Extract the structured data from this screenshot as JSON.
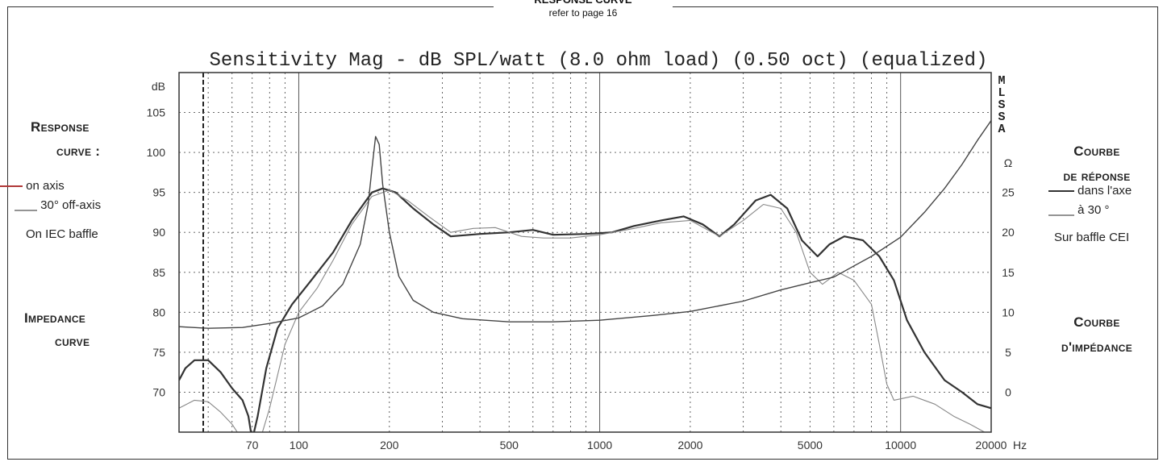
{
  "header": {
    "title": "RESPONSE CURVE",
    "subtitle": "refer to page 16"
  },
  "left_legend": {
    "response_title_1": "Response",
    "response_title_2": "curve :",
    "on_axis": "on axis",
    "off_axis": "30° off-axis",
    "baffle": "On IEC baffle",
    "impedance_title_1": "Impedance",
    "impedance_title_2": "curve"
  },
  "right_legend": {
    "response_title_1": "Courbe",
    "response_title_2": "de réponse",
    "on_axis": "dans l'axe",
    "off_axis": "à 30 °",
    "baffle": "Sur baffle CEI",
    "impedance_title_1": "Courbe",
    "impedance_title_2": "d'impédance"
  },
  "chart_data": {
    "type": "line",
    "title": "Sensitivity Mag - dB SPL/watt (8.0 ohm load) (0.50 oct) (equalized)",
    "brand_vertical": "MLSSA",
    "x_scale": "log",
    "xlim": [
      40,
      20000
    ],
    "xlabel": "Hz",
    "x_ticks": [
      {
        "value": 70,
        "label": "70"
      },
      {
        "value": 100,
        "label": "100"
      },
      {
        "value": 200,
        "label": "200"
      },
      {
        "value": 500,
        "label": "500"
      },
      {
        "value": 1000,
        "label": "1000"
      },
      {
        "value": 2000,
        "label": "2000"
      },
      {
        "value": 5000,
        "label": "5000"
      },
      {
        "value": 10000,
        "label": "10000"
      },
      {
        "value": 20000,
        "label": "20000"
      }
    ],
    "y_left_unit": "dB",
    "ylim": [
      65,
      110
    ],
    "y_left_ticks": [
      70,
      75,
      80,
      85,
      90,
      95,
      100,
      105
    ],
    "y_right_unit": "Ω",
    "y_right_ticks": [
      0,
      5,
      10,
      15,
      20,
      25
    ],
    "y_right_mapping": "ohm = dB - 70",
    "grid": true,
    "series": [
      {
        "name": "on axis",
        "axis": "left",
        "color": "#333333",
        "width": 2.2,
        "points": [
          [
            40,
            71.5
          ],
          [
            42,
            73
          ],
          [
            45,
            74
          ],
          [
            50,
            74
          ],
          [
            55,
            72.5
          ],
          [
            60,
            70.5
          ],
          [
            65,
            69
          ],
          [
            68,
            67
          ],
          [
            70,
            64
          ],
          [
            73,
            67
          ],
          [
            78,
            73
          ],
          [
            85,
            78
          ],
          [
            95,
            81
          ],
          [
            110,
            84
          ],
          [
            130,
            87.5
          ],
          [
            150,
            91.5
          ],
          [
            175,
            95
          ],
          [
            190,
            95.5
          ],
          [
            210,
            95
          ],
          [
            240,
            93
          ],
          [
            280,
            91
          ],
          [
            320,
            89.5
          ],
          [
            400,
            89.8
          ],
          [
            500,
            90
          ],
          [
            600,
            90.3
          ],
          [
            700,
            89.7
          ],
          [
            900,
            89.8
          ],
          [
            1100,
            90
          ],
          [
            1300,
            90.8
          ],
          [
            1600,
            91.5
          ],
          [
            1900,
            92
          ],
          [
            2200,
            91
          ],
          [
            2500,
            89.5
          ],
          [
            2800,
            91
          ],
          [
            3300,
            94
          ],
          [
            3700,
            94.7
          ],
          [
            4200,
            93
          ],
          [
            4700,
            89
          ],
          [
            5300,
            87
          ],
          [
            5800,
            88.5
          ],
          [
            6500,
            89.5
          ],
          [
            7500,
            89
          ],
          [
            8500,
            87
          ],
          [
            9500,
            84
          ],
          [
            10500,
            79
          ],
          [
            12000,
            75
          ],
          [
            14000,
            71.5
          ],
          [
            16000,
            70
          ],
          [
            18000,
            68.5
          ],
          [
            20000,
            68
          ]
        ]
      },
      {
        "name": "30° off-axis",
        "axis": "left",
        "color": "#888888",
        "width": 1.1,
        "points": [
          [
            40,
            68
          ],
          [
            45,
            69
          ],
          [
            50,
            68.8
          ],
          [
            55,
            67.5
          ],
          [
            60,
            66
          ],
          [
            65,
            64
          ],
          [
            75,
            64.5
          ],
          [
            80,
            68
          ],
          [
            90,
            76
          ],
          [
            100,
            80
          ],
          [
            115,
            83
          ],
          [
            130,
            86.5
          ],
          [
            150,
            91
          ],
          [
            175,
            94.5
          ],
          [
            200,
            95.3
          ],
          [
            230,
            94
          ],
          [
            270,
            92
          ],
          [
            320,
            90
          ],
          [
            380,
            90.5
          ],
          [
            450,
            90.6
          ],
          [
            550,
            89.5
          ],
          [
            650,
            89.3
          ],
          [
            800,
            89.3
          ],
          [
            1000,
            89.7
          ],
          [
            1300,
            90.5
          ],
          [
            1600,
            91.2
          ],
          [
            2000,
            91.5
          ],
          [
            2500,
            89.5
          ],
          [
            3000,
            91.5
          ],
          [
            3500,
            93.5
          ],
          [
            4000,
            93
          ],
          [
            4500,
            90
          ],
          [
            5000,
            85
          ],
          [
            5500,
            83.5
          ],
          [
            6200,
            85
          ],
          [
            7000,
            84
          ],
          [
            8000,
            81
          ],
          [
            8500,
            76
          ],
          [
            9000,
            71
          ],
          [
            9500,
            69
          ],
          [
            11000,
            69.5
          ],
          [
            13000,
            68.5
          ],
          [
            15000,
            67
          ],
          [
            17000,
            66
          ],
          [
            19000,
            65
          ]
        ]
      },
      {
        "name": "impedance",
        "axis": "right",
        "color": "#444444",
        "width": 1.4,
        "points": [
          [
            40,
            8.2
          ],
          [
            50,
            8
          ],
          [
            65,
            8.1
          ],
          [
            80,
            8.6
          ],
          [
            100,
            9.3
          ],
          [
            120,
            10.8
          ],
          [
            140,
            13.5
          ],
          [
            160,
            18.5
          ],
          [
            170,
            23.5
          ],
          [
            175,
            28
          ],
          [
            180,
            32
          ],
          [
            185,
            31
          ],
          [
            190,
            26
          ],
          [
            200,
            20
          ],
          [
            215,
            14.5
          ],
          [
            240,
            11.5
          ],
          [
            280,
            10
          ],
          [
            350,
            9.2
          ],
          [
            500,
            8.8
          ],
          [
            700,
            8.8
          ],
          [
            1000,
            9
          ],
          [
            1500,
            9.6
          ],
          [
            2000,
            10.1
          ],
          [
            3000,
            11.4
          ],
          [
            4000,
            12.8
          ],
          [
            5000,
            13.7
          ],
          [
            6000,
            14.4
          ],
          [
            7000,
            15.8
          ],
          [
            8000,
            17
          ],
          [
            10000,
            19.4
          ],
          [
            12000,
            22.5
          ],
          [
            14000,
            25.5
          ],
          [
            16000,
            28.5
          ],
          [
            18000,
            31.5
          ],
          [
            20000,
            34
          ]
        ]
      }
    ]
  }
}
